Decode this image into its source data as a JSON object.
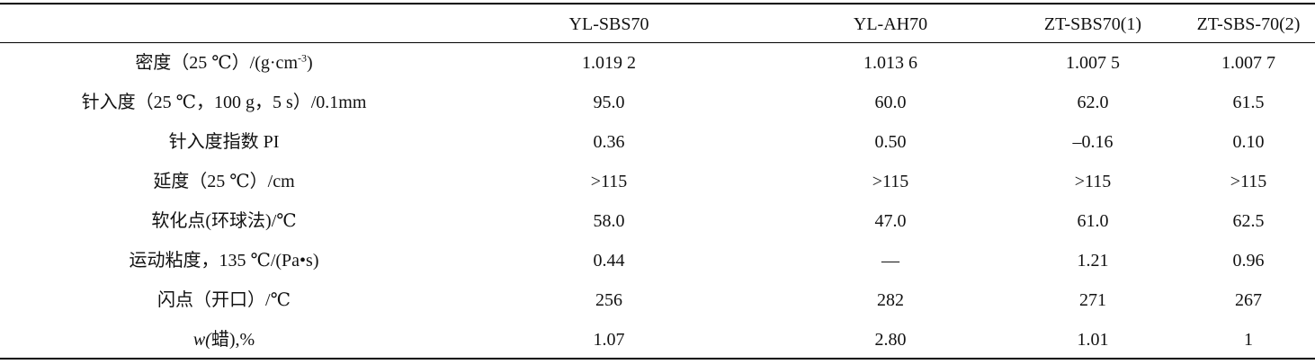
{
  "table": {
    "columns": [
      "",
      "YL-SBS70",
      "YL-AH70",
      "ZT-SBS70(1)",
      "ZT-SBS-70(2)"
    ],
    "rows": [
      {
        "label": "密度（25 ℃）/(g·cm",
        "label_sup": "-3",
        "label_tail": ")",
        "values": [
          "1.019 2",
          "1.013 6",
          "1.007 5",
          "1.007 7"
        ]
      },
      {
        "label": "针入度（25 ℃，100 g，5 s）/0.1mm",
        "values": [
          "95.0",
          "60.0",
          "62.0",
          "61.5"
        ]
      },
      {
        "label": "针入度指数 PI",
        "values": [
          "0.36",
          "0.50",
          "–0.16",
          "0.10"
        ]
      },
      {
        "label": "延度（25 ℃）/cm",
        "values": [
          ">115",
          ">115",
          ">115",
          ">115"
        ]
      },
      {
        "label": "软化点(环球法)/℃",
        "values": [
          "58.0",
          "47.0",
          "61.0",
          "62.5"
        ]
      },
      {
        "label": "运动粘度，135 ℃/(Pa•s)",
        "values": [
          "0.44",
          "—",
          "1.21",
          "0.96"
        ]
      },
      {
        "label": "闪点（开口）/℃",
        "values": [
          "256",
          "282",
          "271",
          "267"
        ]
      },
      {
        "label": "w(蜡),%",
        "values": [
          "1.07",
          "2.80",
          "1.01",
          "1"
        ]
      }
    ]
  }
}
